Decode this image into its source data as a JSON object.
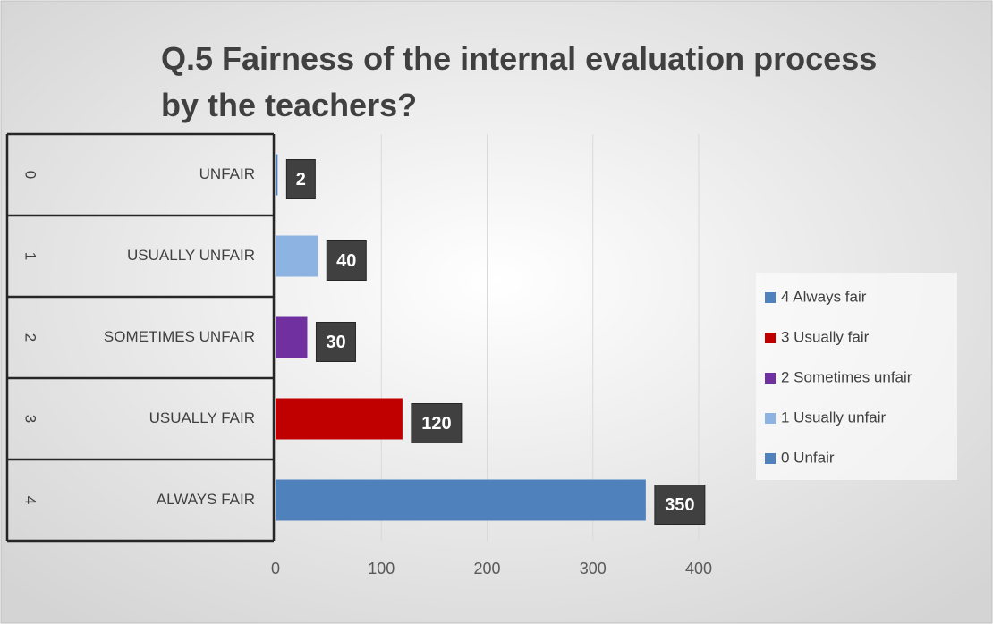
{
  "chart_data": {
    "type": "bar",
    "orientation": "horizontal",
    "title": "Q.5 Fairness of the internal evaluation process by the teachers?",
    "category_codes": [
      "0",
      "1",
      "2",
      "3",
      "4"
    ],
    "categories": [
      "UNFAIR",
      "USUALLY UNFAIR",
      "SOMETIMES UNFAIR",
      "USUALLY FAIR",
      "ALWAYS FAIR"
    ],
    "values": [
      2,
      40,
      30,
      120,
      350
    ],
    "colors": [
      "#4f81bd",
      "#8db3e2",
      "#7030a0",
      "#c00000",
      "#4f81bd"
    ],
    "xlim": [
      0,
      400
    ],
    "xticks": [
      0,
      100,
      200,
      300,
      400
    ],
    "grid": true,
    "legend": [
      {
        "name": "4 Always fair",
        "color": "#4f81bd"
      },
      {
        "name": "3 Usually fair",
        "color": "#c00000"
      },
      {
        "name": "2 Sometimes unfair",
        "color": "#7030a0"
      },
      {
        "name": "1 Usually unfair",
        "color": "#8db3e2"
      },
      {
        "name": "0 Unfair",
        "color": "#4f81bd"
      }
    ]
  }
}
